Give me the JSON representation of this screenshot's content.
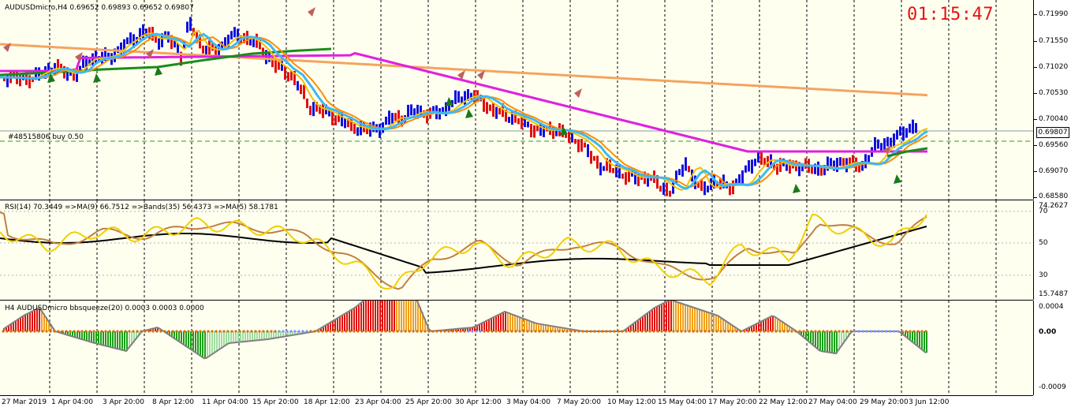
{
  "chart_title": "AUDUSDmicro,H4  0.69652 0.69893 0.69652 0.69807",
  "clock": "01:15:47",
  "order_label": "#48515806 buy 0.50",
  "current_price": "0.69807",
  "price_axis": [
    "0.71990",
    "0.71550",
    "0.71020",
    "0.70530",
    "0.70040",
    "0.69560",
    "0.69070",
    "0.68580"
  ],
  "rsi_title": "RSI(14) 70.3449  =>MA(9) 66.7512  =>Bands(35) 56.4373  =>MA(5) 58.1781",
  "rsi_axis": [
    "74.2627",
    "70",
    "50",
    "30",
    "15.7487"
  ],
  "squeeze_title": "H4 AUDUSDmicro bbsqueeze(20) 0.0003 0.0003 0.0000",
  "squeeze_axis": [
    "0.0004",
    "0.00",
    "-0.0009"
  ],
  "time_axis": [
    "27 Mar 2019",
    "1 Apr 04:00",
    "3 Apr 20:00",
    "8 Apr 12:00",
    "11 Apr 04:00",
    "15 Apr 20:00",
    "18 Apr 12:00",
    "23 Apr 04:00",
    "25 Apr 20:00",
    "30 Apr 12:00",
    "3 May 04:00",
    "7 May 20:00",
    "10 May 12:00",
    "15 May 04:00",
    "17 May 20:00",
    "22 May 12:00",
    "27 May 04:00",
    "29 May 20:00",
    "3 Jun 12:00"
  ],
  "colors": {
    "bull": "#1010e0",
    "bear": "#e01010",
    "ma_long": "#f4a460",
    "ma_mid": "#e020e0",
    "ma_green": "#1a8c1a",
    "ma_orange": "#ff8c00",
    "ma_yellow": "#f0c000",
    "ma_cyan": "#40b8f0",
    "clock": "#e81010"
  }
}
